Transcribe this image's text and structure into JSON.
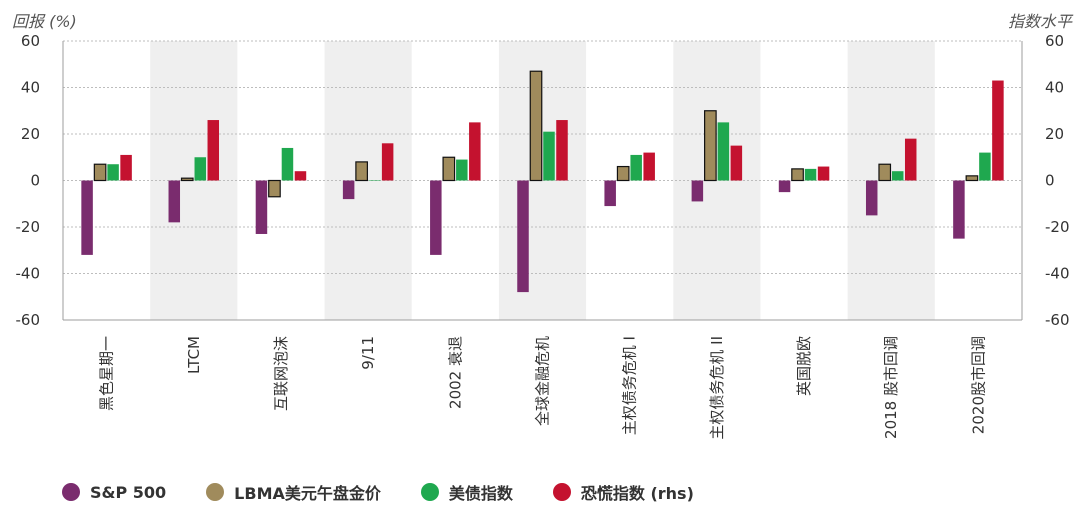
{
  "chart_data": {
    "type": "bar",
    "ylabel_left": "回报 (%)",
    "ylabel_right": "指数水平",
    "ylim": [
      -60,
      60
    ],
    "yticks": [
      60,
      40,
      20,
      0,
      -20,
      -40,
      -60
    ],
    "categories": [
      "黑色星期一",
      "LTCM",
      "互联网泡沫",
      "9/11",
      "2002 衰退",
      "全球金融危机",
      "主权债务危机 I",
      "主权债务危机 II",
      "英国脱欧",
      "2018 股市回调",
      "2020股市回调"
    ],
    "shaded": [
      false,
      true,
      false,
      true,
      false,
      true,
      false,
      true,
      false,
      true,
      false
    ],
    "series": [
      {
        "name": "S&P 500",
        "color": "#7a2c6e",
        "outline": false,
        "values": [
          -32,
          -18,
          -23,
          -8,
          -32,
          -48,
          -11,
          -9,
          -5,
          -15,
          -25
        ]
      },
      {
        "name": "LBMA美元午盘金价",
        "color": "#a08b5c",
        "outline": true,
        "values": [
          7,
          1,
          -7,
          8,
          10,
          47,
          6,
          30,
          5,
          7,
          2
        ]
      },
      {
        "name": "美债指数",
        "color": "#1fa84f",
        "outline": false,
        "values": [
          7,
          10,
          14,
          0,
          9,
          21,
          11,
          25,
          5,
          4,
          12
        ]
      },
      {
        "name": "恐慌指数 (rhs)",
        "color": "#c4122f",
        "outline": false,
        "values": [
          11,
          26,
          4,
          16,
          25,
          26,
          12,
          15,
          6,
          18,
          43
        ]
      }
    ],
    "grid": true,
    "legend_position": "bottom-left"
  }
}
